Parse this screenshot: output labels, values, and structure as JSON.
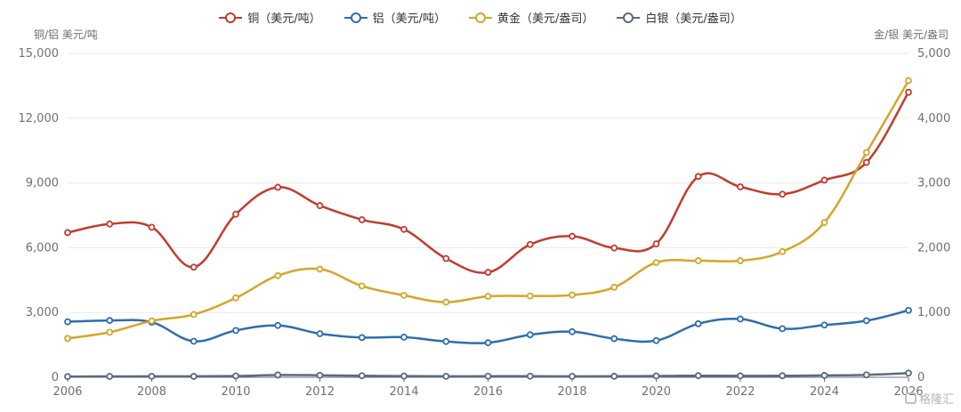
{
  "chart_data": {
    "type": "line",
    "title": "",
    "x": [
      2006,
      2007,
      2008,
      2009,
      2010,
      2011,
      2012,
      2013,
      2014,
      2015,
      2016,
      2017,
      2018,
      2019,
      2020,
      2021,
      2022,
      2023,
      2024,
      2025,
      2026
    ],
    "x_ticks": [
      "2006",
      "2008",
      "2010",
      "2012",
      "2014",
      "2016",
      "2018",
      "2020",
      "2022",
      "2024",
      "2026"
    ],
    "y_left": {
      "label": "铜/铝 美元/吨",
      "ylim": [
        0,
        15000
      ],
      "ticks": [
        "0",
        "3,000",
        "6,000",
        "9,000",
        "12,000",
        "15,000"
      ]
    },
    "y_right": {
      "label": "金/银 美元/盎司",
      "ylim": [
        0,
        5000
      ],
      "ticks": [
        "0",
        "1,000",
        "2,000",
        "3,000",
        "4,000",
        "5,000"
      ]
    },
    "grid": true,
    "legend_position": "top-center",
    "series": [
      {
        "name": "铜（美元/吨）",
        "axis": "left",
        "color": "#c23b30",
        "values": [
          6700,
          7100,
          6950,
          5100,
          7550,
          8800,
          7950,
          7300,
          6850,
          5500,
          4860,
          6150,
          6530,
          5990,
          6180,
          9300,
          8820,
          8480,
          9130,
          9950,
          13200
        ]
      },
      {
        "name": "铝（美元/吨）",
        "axis": "left",
        "color": "#2e6db0",
        "values": [
          2570,
          2630,
          2550,
          1670,
          2170,
          2400,
          2020,
          1840,
          1860,
          1660,
          1600,
          1970,
          2110,
          1790,
          1700,
          2480,
          2700,
          2250,
          2420,
          2620,
          3100
        ]
      },
      {
        "name": "黄金（美元/盎司）",
        "axis": "right",
        "color": "#d6a52a",
        "values": [
          600,
          695,
          870,
          970,
          1225,
          1570,
          1670,
          1410,
          1265,
          1160,
          1250,
          1255,
          1270,
          1390,
          1770,
          1800,
          1800,
          1940,
          2390,
          3470,
          4580
        ]
      },
      {
        "name": "白银（美元/盎司）",
        "axis": "right",
        "color": "#5b6b7b",
        "values": [
          11.5,
          13.4,
          15.0,
          14.7,
          20.2,
          35.1,
          31.2,
          23.8,
          19.1,
          15.7,
          17.1,
          17.1,
          15.7,
          16.2,
          20.5,
          25.1,
          21.7,
          23.4,
          28.3,
          38.0,
          65.0
        ]
      }
    ]
  },
  "watermark": {
    "text": "格隆汇",
    "icon": "glh-logo-icon"
  }
}
